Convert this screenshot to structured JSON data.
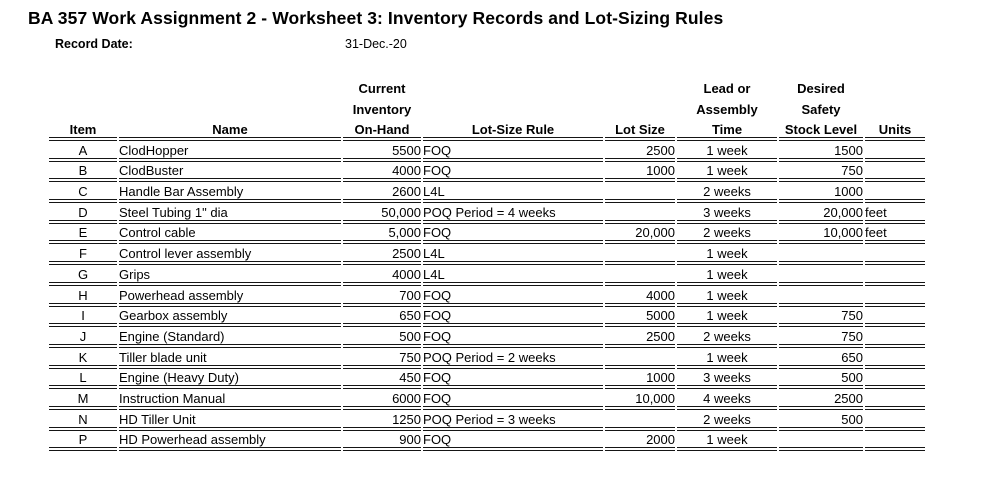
{
  "title": "BA 357 Work Assignment 2 - Worksheet 3: Inventory Records and Lot-Sizing Rules",
  "record_date": {
    "label": "Record Date:",
    "value": "31-Dec.-20"
  },
  "table": {
    "header_line1": [
      "",
      "",
      "Current",
      "",
      "",
      "Lead or",
      "Desired",
      ""
    ],
    "header_line2": [
      "",
      "",
      "Inventory",
      "",
      "",
      "Assembly",
      "Safety",
      ""
    ],
    "header_line3": [
      "Item",
      "Name",
      "On-Hand",
      "Lot-Size Rule",
      "Lot Size",
      "Time",
      "Stock Level",
      "Units"
    ],
    "columns": [
      "item",
      "name",
      "current_inventory_on_hand",
      "lot_size_rule",
      "lot_size",
      "lead_or_assembly_time",
      "desired_safety_stock_level",
      "units"
    ],
    "rows": [
      [
        "A",
        "ClodHopper",
        "5500",
        "FOQ",
        "2500",
        "1 week",
        "1500",
        ""
      ],
      [
        "B",
        "ClodBuster",
        "4000",
        "FOQ",
        "1000",
        "1 week",
        "750",
        ""
      ],
      [
        "C",
        "Handle Bar Assembly",
        "2600",
        "L4L",
        "",
        "2 weeks",
        "1000",
        ""
      ],
      [
        "D",
        "Steel Tubing 1\" dia",
        "50,000",
        "POQ Period = 4 weeks",
        "",
        "3 weeks",
        "20,000",
        "feet"
      ],
      [
        "E",
        "Control cable",
        "5,000",
        "FOQ",
        "20,000",
        "2 weeks",
        "10,000",
        "feet"
      ],
      [
        "F",
        "Control lever assembly",
        "2500",
        "L4L",
        "",
        "1 week",
        "",
        ""
      ],
      [
        "G",
        "Grips",
        "4000",
        "L4L",
        "",
        "1 week",
        "",
        ""
      ],
      [
        "H",
        "Powerhead assembly",
        "700",
        "FOQ",
        "4000",
        "1 week",
        "",
        ""
      ],
      [
        "I",
        "Gearbox assembly",
        "650",
        "FOQ",
        "5000",
        "1 week",
        "750",
        ""
      ],
      [
        "J",
        "Engine (Standard)",
        "500",
        "FOQ",
        "2500",
        "2 weeks",
        "750",
        ""
      ],
      [
        "K",
        "Tiller blade unit",
        "750",
        "POQ Period = 2 weeks",
        "",
        "1 week",
        "650",
        ""
      ],
      [
        "L",
        "Engine (Heavy Duty)",
        "450",
        "FOQ",
        "1000",
        "3 weeks",
        "500",
        ""
      ],
      [
        "M",
        "Instruction Manual",
        "6000",
        "FOQ",
        "10,000",
        "4 weeks",
        "2500",
        ""
      ],
      [
        "N",
        "HD Tiller Unit",
        "1250",
        "POQ Period = 3 weeks",
        "",
        "2 weeks",
        "500",
        ""
      ],
      [
        "P",
        "HD Powerhead assembly",
        "900",
        "FOQ",
        "2000",
        "1 week",
        "",
        ""
      ]
    ]
  }
}
